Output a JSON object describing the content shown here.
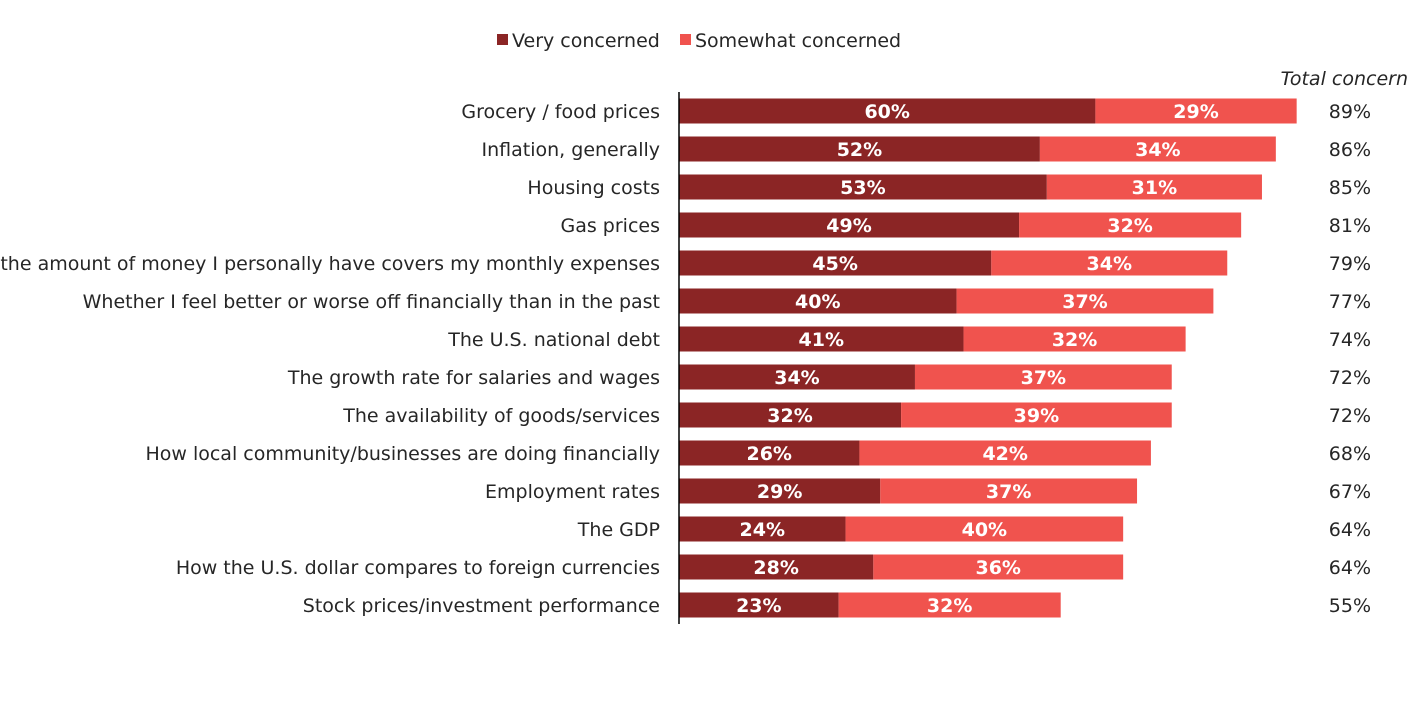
{
  "chart_data": {
    "type": "bar",
    "orientation": "horizontal",
    "stacked": true,
    "legend_position": "top",
    "total_header": "Total concern",
    "colors": {
      "very": "#8B2525",
      "somewhat": "#F0534E",
      "axis": "#000000",
      "text": "#262626"
    },
    "categories": [
      "Grocery / food prices",
      "Inflation, generally",
      "Housing costs",
      "Gas prices",
      "How the amount of money I personally have covers my monthly expenses",
      "Whether I feel better or worse off financially than in the past",
      "The U.S. national debt",
      "The growth rate for salaries and wages",
      "The availability of goods/services",
      "How local community/businesses are doing financially",
      "Employment rates",
      "The GDP",
      "How the U.S. dollar compares to foreign currencies",
      "Stock prices/investment performance"
    ],
    "series": [
      {
        "name": "Very concerned",
        "values": [
          60,
          52,
          53,
          49,
          45,
          40,
          41,
          34,
          32,
          26,
          29,
          24,
          28,
          23
        ]
      },
      {
        "name": "Somewhat concerned",
        "values": [
          29,
          34,
          31,
          32,
          34,
          37,
          32,
          37,
          39,
          42,
          37,
          40,
          36,
          32
        ]
      }
    ],
    "totals": [
      89,
      86,
      85,
      81,
      79,
      77,
      74,
      72,
      72,
      68,
      67,
      64,
      64,
      55
    ],
    "value_suffix": "%",
    "xlim": [
      0,
      100
    ],
    "grid": false
  }
}
